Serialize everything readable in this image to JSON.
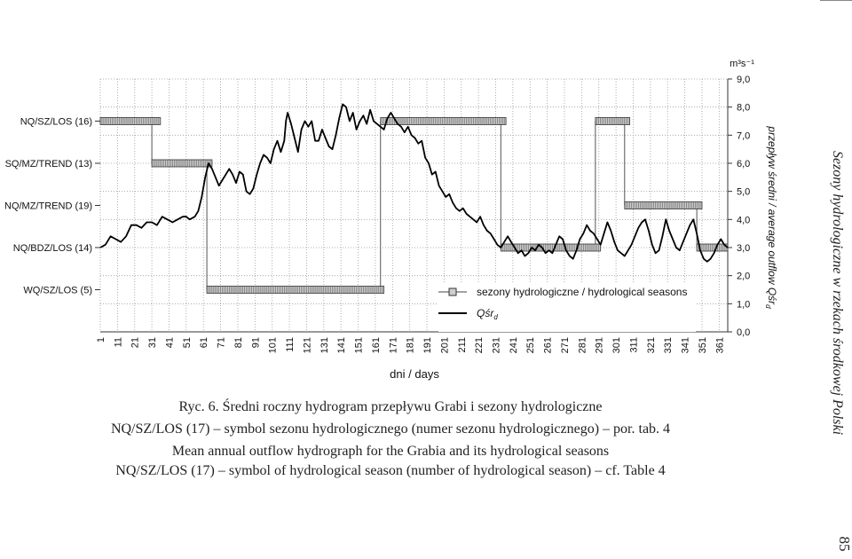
{
  "chart_data": {
    "type": "line",
    "xlabel": "dni / days",
    "ylabel_right": "przepływ średni / average outflow Qśr",
    "ylabel_right_sub": "d",
    "unit": "m³s⁻¹",
    "x_ticks": [
      1,
      11,
      21,
      31,
      41,
      51,
      61,
      71,
      81,
      91,
      101,
      111,
      121,
      131,
      141,
      151,
      161,
      171,
      181,
      191,
      201,
      211,
      221,
      231,
      241,
      251,
      261,
      271,
      281,
      291,
      301,
      311,
      321,
      331,
      341,
      351,
      361
    ],
    "y_ticks": [
      "0,0",
      "1,0",
      "2,0",
      "3,0",
      "4,0",
      "5,0",
      "6,0",
      "7,0",
      "8,0",
      "9,0"
    ],
    "ylim": [
      0,
      9
    ],
    "xlim": [
      1,
      366
    ],
    "season_labels": [
      {
        "label": "NQ/SZ/LOS (16)",
        "y": 7.5
      },
      {
        "label": "SQ/MZ/TREND (13)",
        "y": 6.0
      },
      {
        "label": "NQ/MZ/TREND (19)",
        "y": 4.5
      },
      {
        "label": "NQ/BDZ/LOS (14)",
        "y": 3.0
      },
      {
        "label": "WQ/SZ/LOS (5)",
        "y": 1.5
      }
    ],
    "legend": {
      "seasons": "sezony hydrologiczne / hydrological seasons",
      "flow": "Qśr",
      "flow_sub": "d"
    },
    "seasons_series": [
      {
        "start": 1,
        "end": 36,
        "level": 7.5
      },
      {
        "start": 31,
        "end": 66,
        "level": 6.0
      },
      {
        "start": 63,
        "end": 166,
        "level": 1.5
      },
      {
        "start": 164,
        "end": 237,
        "level": 7.5
      },
      {
        "start": 234,
        "end": 292,
        "level": 3.0
      },
      {
        "start": 289,
        "end": 309,
        "level": 7.5
      },
      {
        "start": 306,
        "end": 351,
        "level": 4.5
      },
      {
        "start": 348,
        "end": 366,
        "level": 3.0
      }
    ],
    "flow_points": [
      [
        1,
        3.0
      ],
      [
        4,
        3.1
      ],
      [
        7,
        3.4
      ],
      [
        10,
        3.3
      ],
      [
        13,
        3.2
      ],
      [
        16,
        3.4
      ],
      [
        19,
        3.8
      ],
      [
        22,
        3.8
      ],
      [
        25,
        3.7
      ],
      [
        28,
        3.9
      ],
      [
        31,
        3.9
      ],
      [
        34,
        3.8
      ],
      [
        37,
        4.1
      ],
      [
        40,
        4.0
      ],
      [
        43,
        3.9
      ],
      [
        46,
        4.0
      ],
      [
        49,
        4.1
      ],
      [
        51,
        4.1
      ],
      [
        53,
        4.0
      ],
      [
        56,
        4.1
      ],
      [
        58,
        4.3
      ],
      [
        60,
        4.8
      ],
      [
        62,
        5.5
      ],
      [
        64,
        6.0
      ],
      [
        66,
        5.8
      ],
      [
        68,
        5.5
      ],
      [
        70,
        5.2
      ],
      [
        72,
        5.4
      ],
      [
        74,
        5.6
      ],
      [
        76,
        5.8
      ],
      [
        78,
        5.6
      ],
      [
        80,
        5.3
      ],
      [
        82,
        5.7
      ],
      [
        84,
        5.6
      ],
      [
        86,
        5.0
      ],
      [
        88,
        4.9
      ],
      [
        90,
        5.1
      ],
      [
        92,
        5.6
      ],
      [
        94,
        6.0
      ],
      [
        96,
        6.3
      ],
      [
        98,
        6.2
      ],
      [
        100,
        6.0
      ],
      [
        102,
        6.5
      ],
      [
        104,
        6.8
      ],
      [
        106,
        6.4
      ],
      [
        108,
        6.8
      ],
      [
        109,
        7.5
      ],
      [
        110,
        7.8
      ],
      [
        112,
        7.4
      ],
      [
        114,
        6.9
      ],
      [
        116,
        6.4
      ],
      [
        118,
        7.2
      ],
      [
        120,
        7.5
      ],
      [
        122,
        7.3
      ],
      [
        124,
        7.5
      ],
      [
        126,
        6.8
      ],
      [
        128,
        6.8
      ],
      [
        130,
        7.2
      ],
      [
        132,
        6.9
      ],
      [
        134,
        6.6
      ],
      [
        136,
        6.5
      ],
      [
        138,
        7.0
      ],
      [
        140,
        7.6
      ],
      [
        142,
        8.1
      ],
      [
        144,
        8.0
      ],
      [
        146,
        7.5
      ],
      [
        148,
        7.8
      ],
      [
        150,
        7.2
      ],
      [
        152,
        7.5
      ],
      [
        154,
        7.7
      ],
      [
        156,
        7.4
      ],
      [
        158,
        7.9
      ],
      [
        160,
        7.5
      ],
      [
        162,
        7.4
      ],
      [
        164,
        7.3
      ],
      [
        166,
        7.2
      ],
      [
        168,
        7.6
      ],
      [
        170,
        7.8
      ],
      [
        172,
        7.6
      ],
      [
        174,
        7.4
      ],
      [
        176,
        7.3
      ],
      [
        178,
        7.1
      ],
      [
        180,
        7.3
      ],
      [
        182,
        7.0
      ],
      [
        184,
        6.9
      ],
      [
        186,
        6.7
      ],
      [
        188,
        6.8
      ],
      [
        190,
        6.2
      ],
      [
        192,
        6.0
      ],
      [
        194,
        5.6
      ],
      [
        196,
        5.7
      ],
      [
        198,
        5.2
      ],
      [
        200,
        5.0
      ],
      [
        202,
        4.8
      ],
      [
        204,
        4.9
      ],
      [
        206,
        4.6
      ],
      [
        208,
        4.4
      ],
      [
        210,
        4.3
      ],
      [
        212,
        4.4
      ],
      [
        214,
        4.2
      ],
      [
        216,
        4.1
      ],
      [
        218,
        4.0
      ],
      [
        220,
        3.9
      ],
      [
        222,
        4.1
      ],
      [
        224,
        3.8
      ],
      [
        226,
        3.6
      ],
      [
        228,
        3.5
      ],
      [
        230,
        3.3
      ],
      [
        232,
        3.1
      ],
      [
        234,
        3.0
      ],
      [
        236,
        3.2
      ],
      [
        238,
        3.4
      ],
      [
        240,
        3.2
      ],
      [
        242,
        3.0
      ],
      [
        244,
        2.8
      ],
      [
        246,
        2.9
      ],
      [
        248,
        2.7
      ],
      [
        250,
        2.8
      ],
      [
        252,
        3.0
      ],
      [
        254,
        2.9
      ],
      [
        256,
        3.1
      ],
      [
        258,
        3.0
      ],
      [
        260,
        2.8
      ],
      [
        262,
        2.9
      ],
      [
        264,
        2.8
      ],
      [
        266,
        3.1
      ],
      [
        268,
        3.4
      ],
      [
        270,
        3.3
      ],
      [
        272,
        2.9
      ],
      [
        274,
        2.7
      ],
      [
        276,
        2.6
      ],
      [
        278,
        2.9
      ],
      [
        280,
        3.3
      ],
      [
        282,
        3.5
      ],
      [
        284,
        3.8
      ],
      [
        286,
        3.6
      ],
      [
        288,
        3.5
      ],
      [
        290,
        3.3
      ],
      [
        292,
        3.1
      ],
      [
        294,
        3.5
      ],
      [
        296,
        3.9
      ],
      [
        298,
        3.6
      ],
      [
        300,
        3.2
      ],
      [
        302,
        2.9
      ],
      [
        304,
        2.8
      ],
      [
        306,
        2.7
      ],
      [
        308,
        2.9
      ],
      [
        310,
        3.1
      ],
      [
        312,
        3.4
      ],
      [
        314,
        3.7
      ],
      [
        316,
        3.9
      ],
      [
        318,
        4.0
      ],
      [
        320,
        3.6
      ],
      [
        322,
        3.1
      ],
      [
        324,
        2.8
      ],
      [
        326,
        2.9
      ],
      [
        328,
        3.4
      ],
      [
        330,
        4.0
      ],
      [
        332,
        3.6
      ],
      [
        334,
        3.3
      ],
      [
        336,
        3.0
      ],
      [
        338,
        2.9
      ],
      [
        340,
        3.2
      ],
      [
        342,
        3.5
      ],
      [
        344,
        3.8
      ],
      [
        346,
        4.0
      ],
      [
        348,
        3.5
      ],
      [
        350,
        2.9
      ],
      [
        352,
        2.6
      ],
      [
        354,
        2.5
      ],
      [
        356,
        2.6
      ],
      [
        358,
        2.8
      ],
      [
        360,
        3.1
      ],
      [
        362,
        3.3
      ],
      [
        364,
        3.1
      ],
      [
        366,
        3.0
      ]
    ]
  },
  "caption": {
    "title": "Ryc. 6. Średni roczny hydrogram przepływu Grabi i sezony hydrologiczne",
    "pl_def": "NQ/SZ/LOS (17) – symbol sezonu hydrologicznego (numer sezonu hydrologicznego) – por. tab. 4",
    "en_title": "Mean annual outflow hydrograph for the Grabia and its hydrological seasons",
    "en_def": "NQ/SZ/LOS (17) – symbol of hydrological season (number of hydrological season) – cf. Table 4"
  },
  "side_header": "Sezony hydrologiczne w rzekach środkowej Polski",
  "page_number": "85",
  "colors": {
    "line": "#000000",
    "grid": "#9a9a9a",
    "season_fill": "#cfcfcf",
    "season_stroke": "#333333"
  }
}
